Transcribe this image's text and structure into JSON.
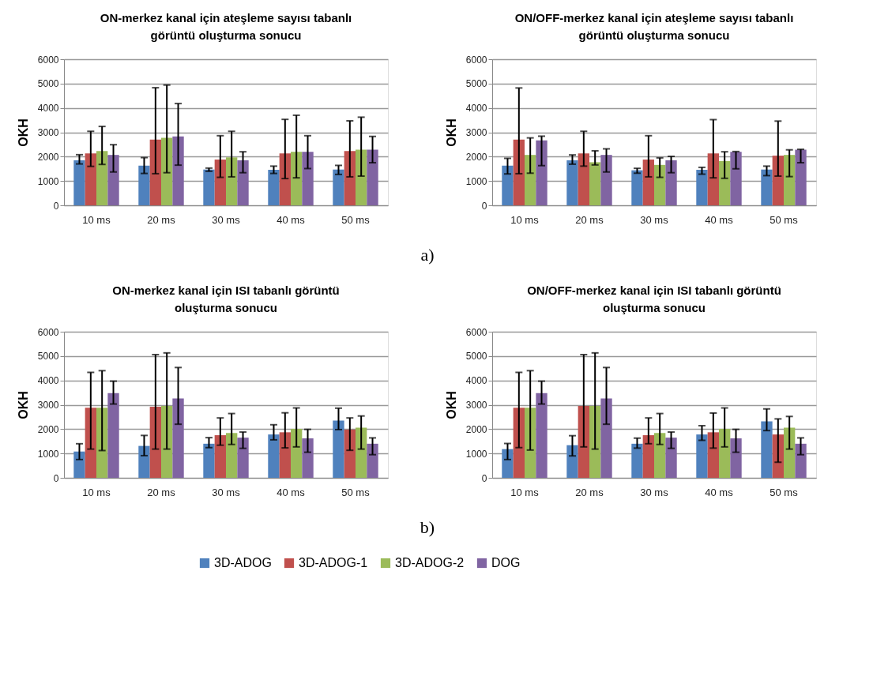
{
  "chart_data": [
    {
      "type": "bar",
      "title": "ON-merkez kanal için ateşleme sayısı tabanlı\ngörüntü oluşturma sonucu",
      "ylabel": "OKH",
      "categories": [
        "10 ms",
        "20 ms",
        "30 ms",
        "40 ms",
        "50 ms"
      ],
      "ylim": [
        0,
        6000
      ],
      "yticks": [
        0,
        1000,
        2000,
        3000,
        4000,
        5000,
        6000
      ],
      "grid": "y",
      "annotations": [
        "a)"
      ],
      "legend": "bottom",
      "series": [
        {
          "name": "3D-ADOG",
          "color": "#4f81bd",
          "values": [
            1850,
            1630,
            1470,
            1460,
            1470
          ],
          "errors": [
            [
              1700,
              2080
            ],
            [
              1310,
              1960
            ],
            [
              1400,
              1530
            ],
            [
              1310,
              1610
            ],
            [
              1270,
              1640
            ]
          ]
        },
        {
          "name": "3D-ADOG-1",
          "color": "#c0504d",
          "values": [
            2130,
            2700,
            1880,
            2130,
            2230
          ],
          "errors": [
            [
              1600,
              3040
            ],
            [
              1300,
              4830
            ],
            [
              1150,
              2860
            ],
            [
              1100,
              3530
            ],
            [
              1170,
              3470
            ]
          ]
        },
        {
          "name": "3D-ADOG-2",
          "color": "#9bbb59",
          "values": [
            2230,
            2770,
            1970,
            2200,
            2290
          ],
          "errors": [
            [
              1680,
              3240
            ],
            [
              1340,
              4940
            ],
            [
              1170,
              3040
            ],
            [
              1130,
              3700
            ],
            [
              1200,
              3620
            ]
          ]
        },
        {
          "name": "DOG",
          "color": "#8064a2",
          "values": [
            2070,
            2830,
            1850,
            2200,
            2290
          ],
          "errors": [
            [
              1370,
              2490
            ],
            [
              1650,
              4180
            ],
            [
              1340,
              2200
            ],
            [
              1510,
              2860
            ],
            [
              1750,
              2830
            ]
          ]
        }
      ]
    },
    {
      "type": "bar",
      "title": "ON/OFF-merkez kanal için ateşleme sayısı tabanlı\ngörüntü oluşturma sonucu",
      "ylabel": "OKH",
      "categories": [
        "10 ms",
        "20 ms",
        "30 ms",
        "40 ms",
        "50 ms"
      ],
      "ylim": [
        0,
        6000
      ],
      "yticks": [
        0,
        1000,
        2000,
        3000,
        4000,
        5000,
        6000
      ],
      "grid": "y",
      "series": [
        {
          "color": "#4f81bd",
          "values": [
            1630,
            1850,
            1440,
            1460,
            1470
          ],
          "errors": [
            [
              1290,
              1930
            ],
            [
              1690,
              2070
            ],
            [
              1320,
              1520
            ],
            [
              1280,
              1560
            ],
            [
              1220,
              1610
            ]
          ]
        },
        {
          "color": "#c0504d",
          "values": [
            2700,
            2130,
            1880,
            2130,
            2040
          ],
          "errors": [
            [
              1300,
              4820
            ],
            [
              1610,
              3040
            ],
            [
              1170,
              2860
            ],
            [
              1130,
              3520
            ],
            [
              1200,
              3460
            ]
          ]
        },
        {
          "color": "#9bbb59",
          "values": [
            2070,
            1770,
            1660,
            1820,
            2070
          ],
          "errors": [
            [
              1320,
              2770
            ],
            [
              1660,
              2240
            ],
            [
              1150,
              1950
            ],
            [
              1110,
              2200
            ],
            [
              1180,
              2280
            ]
          ]
        },
        {
          "color": "#8064a2",
          "values": [
            2670,
            2070,
            1850,
            2200,
            2290
          ],
          "errors": [
            [
              1630,
              2840
            ],
            [
              1370,
              2320
            ],
            [
              1340,
              2010
            ],
            [
              1500,
              2210
            ],
            [
              1750,
              2300
            ]
          ]
        }
      ]
    },
    {
      "type": "bar",
      "title": "ON-merkez kanal için ISI tabanlı görüntü\noluşturma sonucu",
      "ylabel": "OKH",
      "categories": [
        "10 ms",
        "20 ms",
        "30 ms",
        "40 ms",
        "50 ms"
      ],
      "ylim": [
        0,
        6000
      ],
      "yticks": [
        0,
        1000,
        2000,
        3000,
        4000,
        5000,
        6000
      ],
      "grid": "y",
      "annotations": [
        "b)"
      ],
      "series": [
        {
          "color": "#4f81bd",
          "values": [
            1080,
            1310,
            1400,
            1780,
            2350
          ],
          "errors": [
            [
              750,
              1400
            ],
            [
              910,
              1740
            ],
            [
              1240,
              1650
            ],
            [
              1560,
              2180
            ],
            [
              1980,
              2860
            ]
          ]
        },
        {
          "color": "#c0504d",
          "values": [
            2880,
            2920,
            1750,
            1870,
            1980
          ],
          "errors": [
            [
              1180,
              4330
            ],
            [
              1180,
              5060
            ],
            [
              1340,
              2460
            ],
            [
              1230,
              2670
            ],
            [
              1130,
              2460
            ]
          ]
        },
        {
          "color": "#9bbb59",
          "values": [
            2880,
            2950,
            1840,
            2010,
            2060
          ],
          "errors": [
            [
              1120,
              4400
            ],
            [
              1180,
              5130
            ],
            [
              1370,
              2640
            ],
            [
              1270,
              2870
            ],
            [
              1180,
              2540
            ]
          ]
        },
        {
          "color": "#8064a2",
          "values": [
            3480,
            3260,
            1650,
            1620,
            1400
          ],
          "errors": [
            [
              3030,
              3970
            ],
            [
              2200,
              4530
            ],
            [
              1210,
              1880
            ],
            [
              1050,
              1990
            ],
            [
              950,
              1640
            ]
          ]
        }
      ]
    },
    {
      "type": "bar",
      "title": "ON/OFF-merkez kanal için ISI tabanlı görüntü\noluşturma sonucu",
      "ylabel": "OKH",
      "categories": [
        "10 ms",
        "20 ms",
        "30 ms",
        "40 ms",
        "50 ms"
      ],
      "ylim": [
        0,
        6000
      ],
      "yticks": [
        0,
        1000,
        2000,
        3000,
        4000,
        5000,
        6000
      ],
      "grid": "y",
      "series": [
        {
          "color": "#4f81bd",
          "values": [
            1180,
            1340,
            1400,
            1780,
            2320
          ],
          "errors": [
            [
              750,
              1410
            ],
            [
              900,
              1730
            ],
            [
              1220,
              1630
            ],
            [
              1540,
              2140
            ],
            [
              1940,
              2830
            ]
          ]
        },
        {
          "color": "#c0504d",
          "values": [
            2880,
            2950,
            1750,
            1870,
            1780
          ],
          "errors": [
            [
              1240,
              4330
            ],
            [
              1270,
              5060
            ],
            [
              1400,
              2460
            ],
            [
              1220,
              2660
            ],
            [
              640,
              2420
            ]
          ]
        },
        {
          "color": "#9bbb59",
          "values": [
            2880,
            2950,
            1840,
            2010,
            2060
          ],
          "errors": [
            [
              1140,
              4400
            ],
            [
              1180,
              5130
            ],
            [
              1370,
              2640
            ],
            [
              1270,
              2870
            ],
            [
              1180,
              2520
            ]
          ]
        },
        {
          "color": "#8064a2",
          "values": [
            3480,
            3260,
            1650,
            1620,
            1400
          ],
          "errors": [
            [
              3030,
              3970
            ],
            [
              2200,
              4530
            ],
            [
              1210,
              1880
            ],
            [
              1050,
              1990
            ],
            [
              950,
              1640
            ]
          ]
        }
      ]
    }
  ]
}
